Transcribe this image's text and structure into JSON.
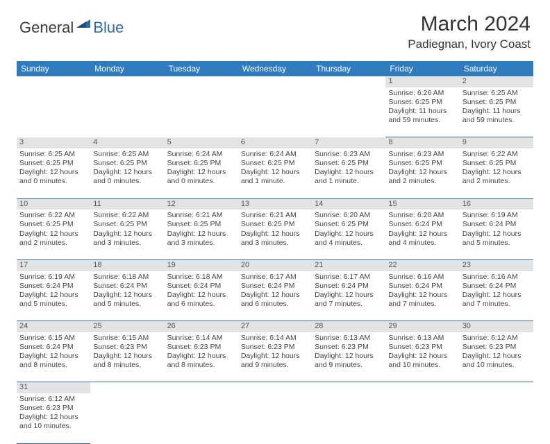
{
  "logo": {
    "text1": "General",
    "text2": "Blue"
  },
  "title": "March 2024",
  "location": "Padiegnan, Ivory Coast",
  "colors": {
    "headerBg": "#2f7bbf",
    "headerText": "#ffffff",
    "dayRowBg": "#e3e3e3",
    "border": "#2f6aa8",
    "logoBlue": "#2f6aa8"
  },
  "weekdays": [
    "Sunday",
    "Monday",
    "Tuesday",
    "Wednesday",
    "Thursday",
    "Friday",
    "Saturday"
  ],
  "weeks": [
    [
      null,
      null,
      null,
      null,
      null,
      {
        "n": "1",
        "sr": "Sunrise: 6:26 AM",
        "ss": "Sunset: 6:25 PM",
        "dl": "Daylight: 11 hours and 59 minutes."
      },
      {
        "n": "2",
        "sr": "Sunrise: 6:25 AM",
        "ss": "Sunset: 6:25 PM",
        "dl": "Daylight: 11 hours and 59 minutes."
      }
    ],
    [
      {
        "n": "3",
        "sr": "Sunrise: 6:25 AM",
        "ss": "Sunset: 6:25 PM",
        "dl": "Daylight: 12 hours and 0 minutes."
      },
      {
        "n": "4",
        "sr": "Sunrise: 6:25 AM",
        "ss": "Sunset: 6:25 PM",
        "dl": "Daylight: 12 hours and 0 minutes."
      },
      {
        "n": "5",
        "sr": "Sunrise: 6:24 AM",
        "ss": "Sunset: 6:25 PM",
        "dl": "Daylight: 12 hours and 0 minutes."
      },
      {
        "n": "6",
        "sr": "Sunrise: 6:24 AM",
        "ss": "Sunset: 6:25 PM",
        "dl": "Daylight: 12 hours and 1 minute."
      },
      {
        "n": "7",
        "sr": "Sunrise: 6:23 AM",
        "ss": "Sunset: 6:25 PM",
        "dl": "Daylight: 12 hours and 1 minute."
      },
      {
        "n": "8",
        "sr": "Sunrise: 6:23 AM",
        "ss": "Sunset: 6:25 PM",
        "dl": "Daylight: 12 hours and 2 minutes."
      },
      {
        "n": "9",
        "sr": "Sunrise: 6:22 AM",
        "ss": "Sunset: 6:25 PM",
        "dl": "Daylight: 12 hours and 2 minutes."
      }
    ],
    [
      {
        "n": "10",
        "sr": "Sunrise: 6:22 AM",
        "ss": "Sunset: 6:25 PM",
        "dl": "Daylight: 12 hours and 2 minutes."
      },
      {
        "n": "11",
        "sr": "Sunrise: 6:22 AM",
        "ss": "Sunset: 6:25 PM",
        "dl": "Daylight: 12 hours and 3 minutes."
      },
      {
        "n": "12",
        "sr": "Sunrise: 6:21 AM",
        "ss": "Sunset: 6:25 PM",
        "dl": "Daylight: 12 hours and 3 minutes."
      },
      {
        "n": "13",
        "sr": "Sunrise: 6:21 AM",
        "ss": "Sunset: 6:25 PM",
        "dl": "Daylight: 12 hours and 3 minutes."
      },
      {
        "n": "14",
        "sr": "Sunrise: 6:20 AM",
        "ss": "Sunset: 6:25 PM",
        "dl": "Daylight: 12 hours and 4 minutes."
      },
      {
        "n": "15",
        "sr": "Sunrise: 6:20 AM",
        "ss": "Sunset: 6:24 PM",
        "dl": "Daylight: 12 hours and 4 minutes."
      },
      {
        "n": "16",
        "sr": "Sunrise: 6:19 AM",
        "ss": "Sunset: 6:24 PM",
        "dl": "Daylight: 12 hours and 5 minutes."
      }
    ],
    [
      {
        "n": "17",
        "sr": "Sunrise: 6:19 AM",
        "ss": "Sunset: 6:24 PM",
        "dl": "Daylight: 12 hours and 5 minutes."
      },
      {
        "n": "18",
        "sr": "Sunrise: 6:18 AM",
        "ss": "Sunset: 6:24 PM",
        "dl": "Daylight: 12 hours and 5 minutes."
      },
      {
        "n": "19",
        "sr": "Sunrise: 6:18 AM",
        "ss": "Sunset: 6:24 PM",
        "dl": "Daylight: 12 hours and 6 minutes."
      },
      {
        "n": "20",
        "sr": "Sunrise: 6:17 AM",
        "ss": "Sunset: 6:24 PM",
        "dl": "Daylight: 12 hours and 6 minutes."
      },
      {
        "n": "21",
        "sr": "Sunrise: 6:17 AM",
        "ss": "Sunset: 6:24 PM",
        "dl": "Daylight: 12 hours and 7 minutes."
      },
      {
        "n": "22",
        "sr": "Sunrise: 6:16 AM",
        "ss": "Sunset: 6:24 PM",
        "dl": "Daylight: 12 hours and 7 minutes."
      },
      {
        "n": "23",
        "sr": "Sunrise: 6:16 AM",
        "ss": "Sunset: 6:24 PM",
        "dl": "Daylight: 12 hours and 7 minutes."
      }
    ],
    [
      {
        "n": "24",
        "sr": "Sunrise: 6:15 AM",
        "ss": "Sunset: 6:24 PM",
        "dl": "Daylight: 12 hours and 8 minutes."
      },
      {
        "n": "25",
        "sr": "Sunrise: 6:15 AM",
        "ss": "Sunset: 6:23 PM",
        "dl": "Daylight: 12 hours and 8 minutes."
      },
      {
        "n": "26",
        "sr": "Sunrise: 6:14 AM",
        "ss": "Sunset: 6:23 PM",
        "dl": "Daylight: 12 hours and 8 minutes."
      },
      {
        "n": "27",
        "sr": "Sunrise: 6:14 AM",
        "ss": "Sunset: 6:23 PM",
        "dl": "Daylight: 12 hours and 9 minutes."
      },
      {
        "n": "28",
        "sr": "Sunrise: 6:13 AM",
        "ss": "Sunset: 6:23 PM",
        "dl": "Daylight: 12 hours and 9 minutes."
      },
      {
        "n": "29",
        "sr": "Sunrise: 6:13 AM",
        "ss": "Sunset: 6:23 PM",
        "dl": "Daylight: 12 hours and 10 minutes."
      },
      {
        "n": "30",
        "sr": "Sunrise: 6:12 AM",
        "ss": "Sunset: 6:23 PM",
        "dl": "Daylight: 12 hours and 10 minutes."
      }
    ],
    [
      {
        "n": "31",
        "sr": "Sunrise: 6:12 AM",
        "ss": "Sunset: 6:23 PM",
        "dl": "Daylight: 12 hours and 10 minutes."
      },
      null,
      null,
      null,
      null,
      null,
      null
    ]
  ]
}
